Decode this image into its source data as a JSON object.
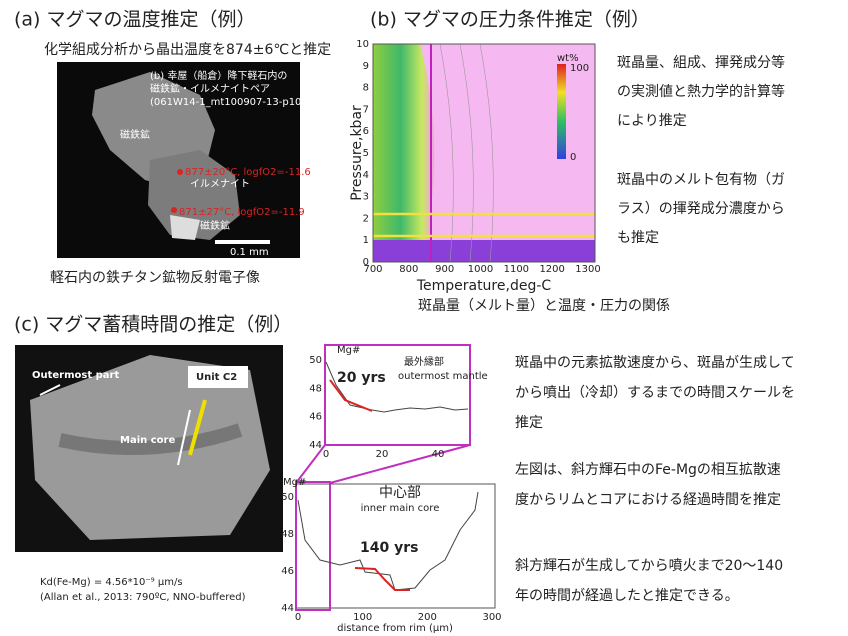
{
  "section_a": {
    "title": "(a) マグマの温度推定（例）",
    "subtitle": "化学組成分析から晶出温度を874±6℃と推定",
    "image_labels": [
      "(b) 幸屋（船倉）降下軽石内の",
      "磁鉄鉱・イルメナイトペア",
      "(061W14-1_mt100907-13-p10)",
      "磁鉄鉱",
      "877±20°C, logfO2=-11.6",
      "イルメナイト",
      "871±27°C, logfO2=-11.9",
      "磁鉄鉱",
      "0.1 mm"
    ],
    "caption": "軽石内の鉄チタン鉱物反射電子像"
  },
  "section_b": {
    "title": "(b) マグマの圧力条件推定（例）",
    "y_label": "Pressure,kbar",
    "x_label": "Temperature,deg-C",
    "xticks": [
      700,
      800,
      900,
      1000,
      1100,
      1200,
      1300
    ],
    "yticks": [
      0,
      1,
      2,
      3,
      4,
      5,
      6,
      7,
      8,
      9,
      10
    ],
    "colorbar_label": "wt%",
    "colorbar_ticks": [
      100,
      0
    ],
    "caption": "斑晶量（メルト量）と温度・圧力の関係",
    "notes": [
      [
        "斑晶量、組成、揮発成分等",
        "の実測値と熱力学的計算等",
        "により推定"
      ],
      [
        "斑晶中のメルト包有物（ガ",
        "ラス）の揮発成分濃度から",
        "も推定"
      ]
    ]
  },
  "section_c": {
    "title": "(c) マグマ蓄積時間の推定（例）",
    "image_labels": [
      "Outermost part",
      "Unit C2",
      "Main core"
    ],
    "kd": "Kd(Fe-Mg) = 4.56*10⁻⁹ μm/s",
    "reference": "(Allan et al., 2013: 790ºC, NNO-buffered)",
    "inset": {
      "y_label": "Mg#",
      "yticks": [
        44,
        46,
        48,
        50
      ],
      "xticks": [
        0,
        20,
        40
      ],
      "annotation": "20 yrs",
      "zone_ja": "最外縁部",
      "zone_en": "outermost mantle"
    },
    "profile": {
      "y_label": "Mg#",
      "yticks": [
        44,
        46,
        48,
        50
      ],
      "xticks": [
        0,
        100,
        200,
        300
      ],
      "annotation": "140 yrs",
      "zone_ja": "中心部",
      "zone_en": "inner main core",
      "x_label": "distance from rim (μm)"
    },
    "notes": [
      [
        "斑晶中の元素拡散速度から、斑晶が生成して",
        "から噴出（冷却）するまでの時間スケールを",
        "推定"
      ],
      [
        "左図は、斜方輝石中のFe-Mgの相互拡散速",
        "度からリムとコアにおける経過時間を推定"
      ],
      [
        "斜方輝石が生成してから噴火まで20～140",
        "年の時間が経過したと推定できる。"
      ]
    ]
  }
}
